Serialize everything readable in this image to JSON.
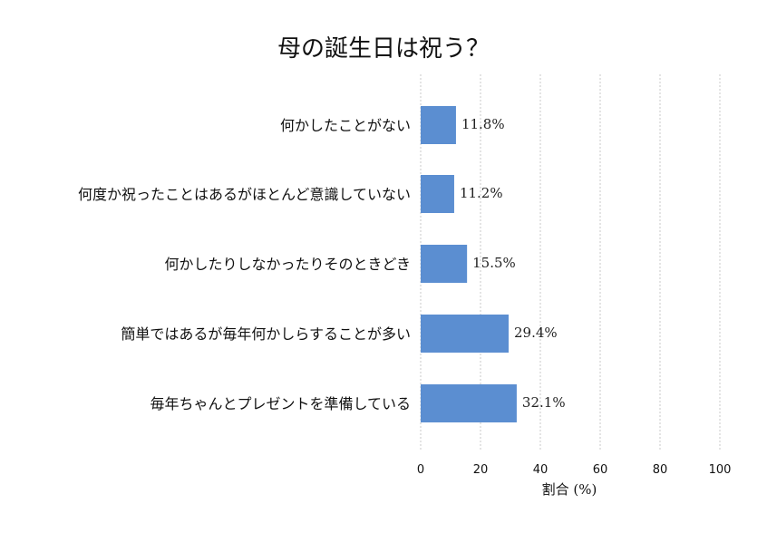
{
  "chart_data": {
    "type": "bar",
    "orientation": "horizontal",
    "title": "母の誕生日は祝う？",
    "xlabel": "割合 (%)",
    "ylabel": "",
    "xlim": [
      0,
      100
    ],
    "xticks": [
      0,
      20,
      40,
      60,
      80,
      100
    ],
    "grid": "vertical-dashed",
    "bar_color": "#5b8ed1",
    "categories": [
      "何かしたことがない",
      "何度か祝ったことはあるがほとんど意識していない",
      "何かしたりしなかったりそのときどき",
      "簡単ではあるが毎年何かしらすることが多い",
      "毎年ちゃんとプレゼントを準備している"
    ],
    "values": [
      11.8,
      11.2,
      15.5,
      29.4,
      32.1
    ],
    "value_labels": [
      "11.8%",
      "11.2%",
      "15.5%",
      "29.4%",
      "32.1%"
    ]
  }
}
